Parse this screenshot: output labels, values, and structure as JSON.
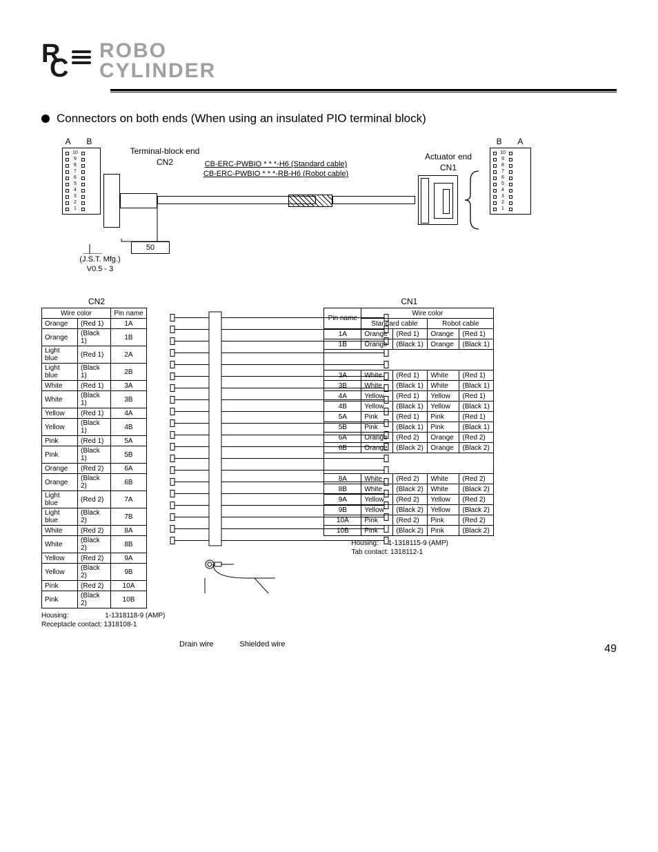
{
  "header": {
    "logo_top": "ROBO",
    "logo_bottom": "CYLINDER"
  },
  "heading": "Connectors on both ends (When using an insulated PIO terminal block)",
  "diagram": {
    "left_ab": "A  B",
    "right_ab": "B  A",
    "terminal_end_l1": "Terminal-block end",
    "terminal_end_l2": "CN2",
    "actuator_end_l1": "Actuator end",
    "actuator_end_l2": "CN1",
    "cable_std": "CB-ERC-PWBIO * * *-H6 (Standard cable)",
    "cable_rb": "CB-ERC-PWBIO * * *-RB-H6 (Robot cable)",
    "dim50": "50",
    "jst_l1": "(J.S.T. Mfg.)",
    "jst_l2": "V0.5 - 3",
    "pins": [
      "1",
      "2",
      "3",
      "4",
      "5",
      "6",
      "7",
      "8",
      "9",
      "10"
    ]
  },
  "cn2": {
    "title": "CN2",
    "hdr_wire": "Wire color",
    "hdr_pin": "Pin name",
    "rows": [
      {
        "c": "Orange",
        "m": "(Red 1)",
        "p": "1A"
      },
      {
        "c": "Orange",
        "m": "(Black 1)",
        "p": "1B"
      },
      {
        "c": "Light blue",
        "m": "(Red 1)",
        "p": "2A"
      },
      {
        "c": "Light blue",
        "m": "(Black 1)",
        "p": "2B"
      },
      {
        "c": "White",
        "m": "(Red 1)",
        "p": "3A"
      },
      {
        "c": "White",
        "m": "(Black 1)",
        "p": "3B"
      },
      {
        "c": "Yellow",
        "m": "(Red 1)",
        "p": "4A"
      },
      {
        "c": "Yellow",
        "m": "(Black 1)",
        "p": "4B"
      },
      {
        "c": "Pink",
        "m": "(Red 1)",
        "p": "5A"
      },
      {
        "c": "Pink",
        "m": "(Black 1)",
        "p": "5B"
      },
      {
        "c": "Orange",
        "m": "(Red 2)",
        "p": "6A"
      },
      {
        "c": "Orange",
        "m": "(Black 2)",
        "p": "6B"
      },
      {
        "c": "Light blue",
        "m": "(Red 2)",
        "p": "7A"
      },
      {
        "c": "Light blue",
        "m": "(Black 2)",
        "p": "7B"
      },
      {
        "c": "White",
        "m": "(Red 2)",
        "p": "8A"
      },
      {
        "c": "White",
        "m": "(Black 2)",
        "p": "8B"
      },
      {
        "c": "Yellow",
        "m": "(Red 2)",
        "p": "9A"
      },
      {
        "c": "Yellow",
        "m": "(Black 2)",
        "p": "9B"
      },
      {
        "c": "Pink",
        "m": "(Red 2)",
        "p": "10A"
      },
      {
        "c": "Pink",
        "m": "(Black 2)",
        "p": "10B"
      }
    ]
  },
  "cn1": {
    "title": "CN1",
    "hdr_pin": "Pin name",
    "hdr_wire": "Wire color",
    "hdr_std": "Standard cable",
    "hdr_rb": "Robot cable",
    "rows": [
      {
        "p": "1A",
        "sc": "Orange",
        "sm": "(Red 1)",
        "rc": "Orange",
        "rm": "(Red 1)"
      },
      {
        "p": "1B",
        "sc": "Orange",
        "sm": "(Black 1)",
        "rc": "Orange",
        "rm": "(Black 1)"
      },
      {
        "blank": true
      },
      {
        "blank": true
      },
      {
        "p": "3A",
        "sc": "White",
        "sm": "(Red 1)",
        "rc": "White",
        "rm": "(Red 1)"
      },
      {
        "p": "3B",
        "sc": "White",
        "sm": "(Black 1)",
        "rc": "White",
        "rm": "(Black 1)"
      },
      {
        "p": "4A",
        "sc": "Yellow",
        "sm": "(Red 1)",
        "rc": "Yellow",
        "rm": "(Red 1)"
      },
      {
        "p": "4B",
        "sc": "Yellow",
        "sm": "(Black 1)",
        "rc": "Yellow",
        "rm": "(Black 1)"
      },
      {
        "p": "5A",
        "sc": "Pink",
        "sm": "(Red 1)",
        "rc": "Pink",
        "rm": "(Red 1)"
      },
      {
        "p": "5B",
        "sc": "Pink",
        "sm": "(Black 1)",
        "rc": "Pink",
        "rm": "(Black 1)"
      },
      {
        "p": "6A",
        "sc": "Orange",
        "sm": "(Red 2)",
        "rc": "Orange",
        "rm": "(Red 2)"
      },
      {
        "p": "6B",
        "sc": "Orange",
        "sm": "(Black 2)",
        "rc": "Orange",
        "rm": "(Black 2)"
      },
      {
        "blank": true
      },
      {
        "blank": true
      },
      {
        "p": "8A",
        "sc": "White",
        "sm": "(Red 2)",
        "rc": "White",
        "rm": "(Red 2)"
      },
      {
        "p": "8B",
        "sc": "White",
        "sm": "(Black 2)",
        "rc": "White",
        "rm": "(Black 2)"
      },
      {
        "p": "9A",
        "sc": "Yellow",
        "sm": "(Red 2)",
        "rc": "Yellow",
        "rm": "(Red 2)"
      },
      {
        "p": "9B",
        "sc": "Yellow",
        "sm": "(Black 2)",
        "rc": "Yellow",
        "rm": "(Black 2)"
      },
      {
        "p": "10A",
        "sc": "Pink",
        "sm": "(Red 2)",
        "rc": "Pink",
        "rm": "(Red 2)"
      },
      {
        "p": "10B",
        "sc": "Pink",
        "sm": "(Black 2)",
        "rc": "Pink",
        "rm": "(Black 2)"
      }
    ]
  },
  "housing_left": {
    "l1": "Housing:",
    "l1v": "1-1318118-9 (AMP)",
    "l2": "Receptacle contact: 1318108-1"
  },
  "housing_right": {
    "l1": "Housing:",
    "l1v": "1-1318115-9 (AMP)",
    "l2": "Tab contact:  1318112-1"
  },
  "bottom_labels": {
    "drain": "Drain wire",
    "shield": "Shielded wire"
  },
  "page_number": "49",
  "colors": {
    "logo_gray": "#a0a0a0",
    "line": "#000000",
    "bg": "#ffffff"
  }
}
